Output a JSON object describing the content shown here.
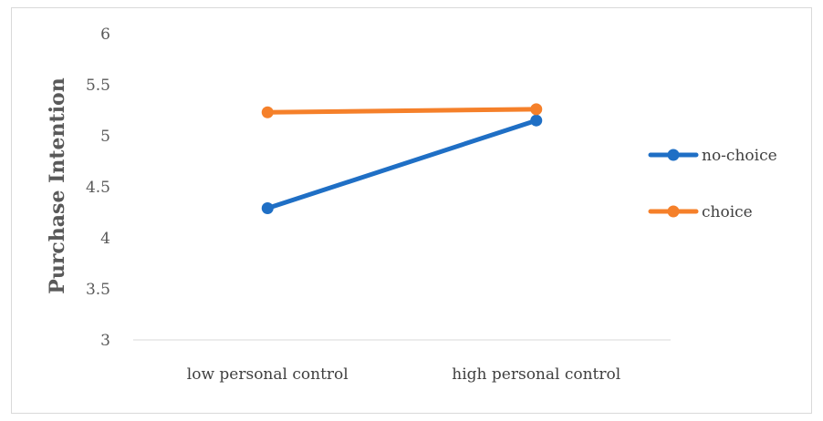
{
  "chart_data": {
    "type": "line",
    "title": "",
    "xlabel": "",
    "ylabel": "Purchase Intention",
    "ylim": [
      3,
      6
    ],
    "yticks": [
      "3",
      "3.5",
      "4",
      "4.5",
      "5",
      "5.5",
      "6"
    ],
    "categories": [
      "low personal control",
      "high personal control"
    ],
    "grid": false,
    "legend_position": "right",
    "series": [
      {
        "name": "no-choice",
        "values": [
          4.29,
          5.15
        ],
        "color": "#1f6fc5"
      },
      {
        "name": "choice",
        "values": [
          5.23,
          5.26
        ],
        "color": "#f5802a"
      }
    ]
  }
}
